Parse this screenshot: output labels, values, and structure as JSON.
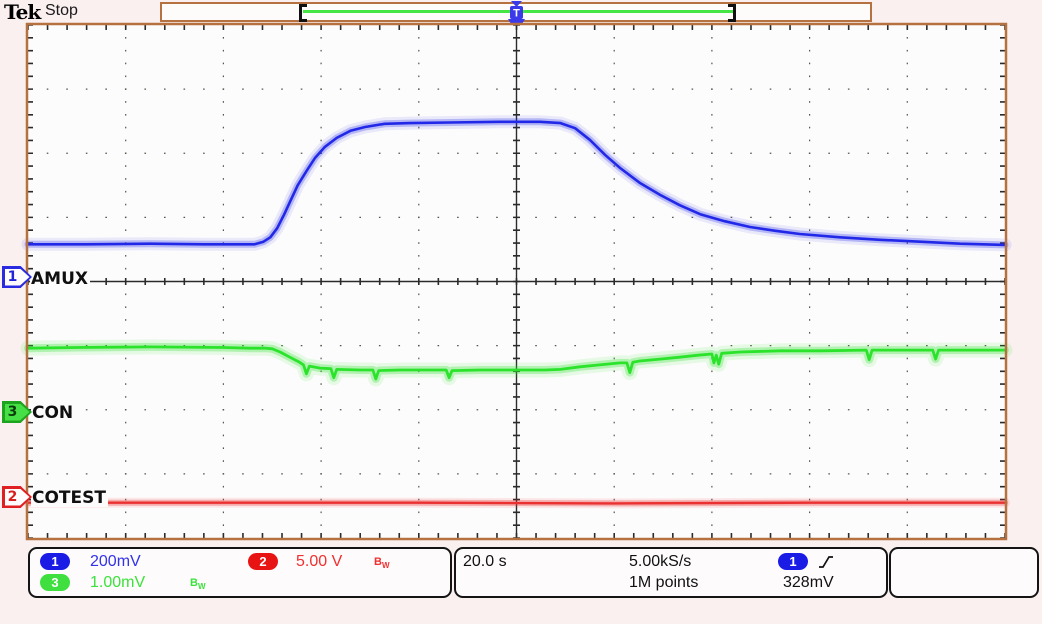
{
  "header": {
    "brand": "Tek",
    "acq_status": "Stop"
  },
  "record_view": {
    "trigger_marker": "T"
  },
  "channels": {
    "ch1": {
      "number": "1",
      "label": "AMUX",
      "scale": "200mV",
      "color": "#2228e8"
    },
    "ch2": {
      "number": "2",
      "label": "COTEST",
      "scale": "5.00 V",
      "color": "#ea3030",
      "bandwidth_limit": {
        "main": "B",
        "sub": "W"
      }
    },
    "ch3": {
      "number": "3",
      "label": "CON",
      "scale": "1.00mV",
      "color": "#2ce32c",
      "bandwidth_limit": {
        "main": "B",
        "sub": "W"
      }
    }
  },
  "horizontal": {
    "time_per_div": "20.0 s",
    "sample_rate": "5.00kS/s",
    "record_length": "1M points"
  },
  "trigger": {
    "source_channel": "1",
    "slope": "rising",
    "level": "328mV"
  },
  "colors": {
    "frame": "#b5713f",
    "background": "#faf0ef",
    "graticule_bg": "#fdfcfc",
    "grid_dots": "#56564a",
    "record_line_green": "#46e546",
    "trigger_marker_blue": "#3a3ae8"
  },
  "chart_data": {
    "type": "line",
    "title": "",
    "xlabel": "time (20.0 s/div, 10 divisions)",
    "ylabel": "volts (8 vertical divisions)",
    "grid": "dotted graticule 10x8 with center crosshair axes",
    "legend_position": "left edge channel markers",
    "note": "points are [x_division 0-10, y_division 0-8 measured from top]; drawn in array order (first = bottom layer)",
    "series": [
      {
        "name": "CH2 COTEST",
        "color": "#ea3030",
        "scale_per_division": "5.00 V",
        "points": [
          [
            0,
            7.45
          ],
          [
            2,
            7.45
          ],
          [
            4,
            7.45
          ],
          [
            6,
            7.46
          ],
          [
            8,
            7.45
          ],
          [
            10,
            7.45
          ]
        ]
      },
      {
        "name": "CH3 CON",
        "color": "#2ce32c",
        "scale_per_division": "1.00mV",
        "points": [
          [
            0,
            5.04
          ],
          [
            0.5,
            5.03
          ],
          [
            1.25,
            5.02
          ],
          [
            2.0,
            5.03
          ],
          [
            2.27,
            5.04
          ],
          [
            2.43,
            5.04
          ],
          [
            2.5,
            5.05
          ],
          [
            2.58,
            5.1
          ],
          [
            2.68,
            5.18
          ],
          [
            2.78,
            5.26
          ],
          [
            2.82,
            5.3
          ],
          [
            2.85,
            5.44
          ],
          [
            2.88,
            5.32
          ],
          [
            2.99,
            5.35
          ],
          [
            3.1,
            5.36
          ],
          [
            3.13,
            5.5
          ],
          [
            3.16,
            5.37
          ],
          [
            3.4,
            5.38
          ],
          [
            3.53,
            5.38
          ],
          [
            3.56,
            5.52
          ],
          [
            3.59,
            5.39
          ],
          [
            3.81,
            5.38
          ],
          [
            4.22,
            5.38
          ],
          [
            4.28,
            5.38
          ],
          [
            4.31,
            5.5
          ],
          [
            4.34,
            5.39
          ],
          [
            4.63,
            5.38
          ],
          [
            5.04,
            5.38
          ],
          [
            5.29,
            5.38
          ],
          [
            5.45,
            5.37
          ],
          [
            5.65,
            5.33
          ],
          [
            5.85,
            5.3
          ],
          [
            6.06,
            5.27
          ],
          [
            6.13,
            5.27
          ],
          [
            6.16,
            5.42
          ],
          [
            6.19,
            5.26
          ],
          [
            6.26,
            5.24
          ],
          [
            6.47,
            5.21
          ],
          [
            6.67,
            5.18
          ],
          [
            6.86,
            5.15
          ],
          [
            7.0,
            5.13
          ],
          [
            7.02,
            5.27
          ],
          [
            7.045,
            5.15
          ],
          [
            7.07,
            5.29
          ],
          [
            7.1,
            5.12
          ],
          [
            7.29,
            5.1
          ],
          [
            7.7,
            5.08
          ],
          [
            8.11,
            5.08
          ],
          [
            8.58,
            5.07
          ],
          [
            8.61,
            5.22
          ],
          [
            8.64,
            5.07
          ],
          [
            8.93,
            5.07
          ],
          [
            9.26,
            5.07
          ],
          [
            9.29,
            5.21
          ],
          [
            9.32,
            5.07
          ],
          [
            9.6,
            5.07
          ],
          [
            10,
            5.07
          ]
        ]
      },
      {
        "name": "CH1 AMUX",
        "color": "#2228e8",
        "scale_per_division": "200mV",
        "points": [
          [
            0,
            3.42
          ],
          [
            0.6,
            3.42
          ],
          [
            1.25,
            3.41
          ],
          [
            1.8,
            3.42
          ],
          [
            2.32,
            3.42
          ],
          [
            2.41,
            3.38
          ],
          [
            2.48,
            3.31
          ],
          [
            2.55,
            3.17
          ],
          [
            2.62,
            2.96
          ],
          [
            2.69,
            2.73
          ],
          [
            2.76,
            2.5
          ],
          [
            2.85,
            2.28
          ],
          [
            2.94,
            2.07
          ],
          [
            3.04,
            1.9
          ],
          [
            3.16,
            1.76
          ],
          [
            3.3,
            1.65
          ],
          [
            3.45,
            1.59
          ],
          [
            3.65,
            1.54
          ],
          [
            3.91,
            1.53
          ],
          [
            4.32,
            1.52
          ],
          [
            4.83,
            1.51
          ],
          [
            5.24,
            1.51
          ],
          [
            5.45,
            1.53
          ],
          [
            5.6,
            1.61
          ],
          [
            5.75,
            1.79
          ],
          [
            5.91,
            2.03
          ],
          [
            6.06,
            2.23
          ],
          [
            6.26,
            2.46
          ],
          [
            6.47,
            2.65
          ],
          [
            6.67,
            2.81
          ],
          [
            6.88,
            2.95
          ],
          [
            7.13,
            3.06
          ],
          [
            7.39,
            3.15
          ],
          [
            7.65,
            3.21
          ],
          [
            7.9,
            3.26
          ],
          [
            8.31,
            3.31
          ],
          [
            8.72,
            3.35
          ],
          [
            9.13,
            3.38
          ],
          [
            9.54,
            3.41
          ],
          [
            10,
            3.43
          ]
        ]
      }
    ]
  }
}
